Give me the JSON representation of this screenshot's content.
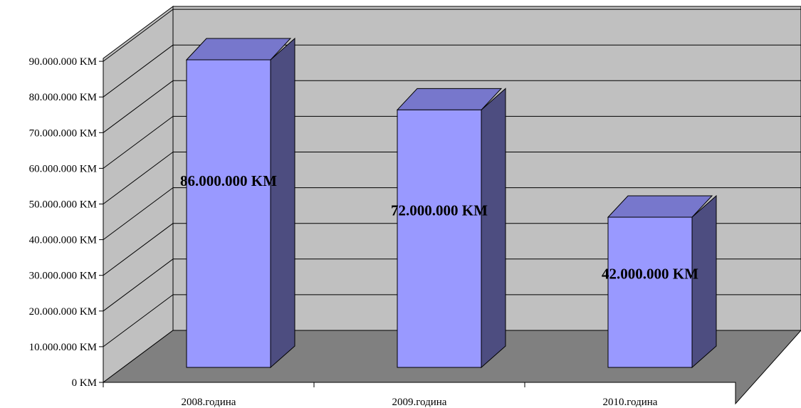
{
  "chart_data": {
    "type": "bar",
    "categories": [
      "2008.година",
      "2009.година",
      "2010.година"
    ],
    "values": [
      86000000,
      72000000,
      42000000
    ],
    "data_labels": [
      "86.000.000 KM",
      "72.000.000 KM",
      "42.000.000 KM"
    ],
    "y_ticks": [
      {
        "value": 0,
        "label": "0 KM"
      },
      {
        "value": 10000000,
        "label": "10.000.000 KM"
      },
      {
        "value": 20000000,
        "label": "20.000.000 KM"
      },
      {
        "value": 30000000,
        "label": "30.000.000 KM"
      },
      {
        "value": 40000000,
        "label": "40.000.000 KM"
      },
      {
        "value": 50000000,
        "label": "50.000.000 KM"
      },
      {
        "value": 60000000,
        "label": "60.000.000 KM"
      },
      {
        "value": 70000000,
        "label": "70.000.000 KM"
      },
      {
        "value": 80000000,
        "label": "80.000.000 KM"
      },
      {
        "value": 90000000,
        "label": "90.000.000 KM"
      }
    ],
    "ylim": [
      0,
      100000000
    ],
    "title": "",
    "xlabel": "",
    "ylabel": "",
    "grid": true,
    "legend": "none",
    "style": "3d-column",
    "colors": {
      "bar_front": "#9999ff",
      "bar_top": "#7777cc",
      "bar_side": "#4d4d80",
      "wall": "#c0c0c0",
      "floor": "#808080",
      "outline": "#000000"
    }
  }
}
